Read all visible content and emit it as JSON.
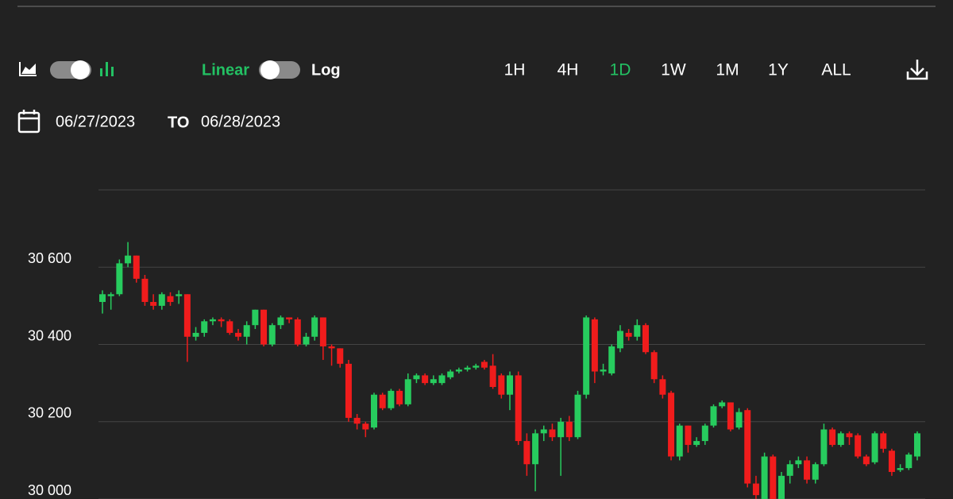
{
  "controls": {
    "scale_options": [
      "Linear",
      "Log"
    ],
    "active_scale": "Linear",
    "ranges": [
      "1H",
      "4H",
      "1D",
      "1W",
      "1M",
      "1Y",
      "ALL"
    ],
    "active_range": "1D",
    "date_from": "06/27/2023",
    "date_separator": "TO",
    "date_to": "06/28/2023",
    "active_color": "#23c163"
  },
  "chart_data": {
    "type": "candlestick",
    "up_color": "#27cc5e",
    "down_color": "#f01c1c",
    "grid": true,
    "ylim": [
      30000,
      30800
    ],
    "yticks": [
      {
        "value": 30000,
        "label": "30 000"
      },
      {
        "value": 30200,
        "label": "30 200"
      },
      {
        "value": 30400,
        "label": "30 400"
      },
      {
        "value": 30600,
        "label": "30 600"
      }
    ],
    "open": [
      30510,
      30525,
      30530,
      30610,
      30630,
      30570,
      30510,
      30500,
      30525,
      30525,
      30530,
      30420,
      30430,
      30460,
      30465,
      30460,
      30430,
      30420,
      30450,
      30490,
      30400,
      30450,
      30470,
      30465,
      30400,
      30420,
      30470,
      30395,
      30390,
      30350,
      30210,
      30195,
      30185,
      30270,
      30235,
      30280,
      30245,
      30310,
      30320,
      30300,
      30300,
      30315,
      30330,
      30335,
      30340,
      30355,
      30345,
      30320,
      30270,
      30320,
      30150,
      30090,
      30170,
      30180,
      30160,
      30200,
      30160,
      30270,
      30465,
      30330,
      30325,
      30390,
      30430,
      30420,
      30450,
      30380,
      30310,
      30275,
      30110,
      30190,
      30140,
      30150,
      30190,
      30240,
      30250,
      30185,
      30230,
      30040,
      30000,
      30110,
      30000,
      30060,
      30090,
      30100,
      30050,
      30090,
      30180,
      30140,
      30170,
      30165,
      30110,
      30095,
      30170,
      30125,
      30075,
      30080,
      30110
    ],
    "high": [
      30540,
      30535,
      30620,
      30665,
      30630,
      30580,
      30530,
      30535,
      30535,
      30540,
      30530,
      30445,
      30465,
      30470,
      30470,
      30465,
      30440,
      30460,
      30490,
      30490,
      30455,
      30475,
      30470,
      30470,
      30430,
      30475,
      30470,
      30400,
      30390,
      30360,
      30220,
      30200,
      30275,
      30275,
      30285,
      30285,
      30325,
      30325,
      30325,
      30320,
      30325,
      30335,
      30340,
      30345,
      30350,
      30360,
      30375,
      30325,
      30330,
      30330,
      30170,
      30180,
      30190,
      30195,
      30210,
      30215,
      30280,
      30475,
      30470,
      30350,
      30400,
      30450,
      30440,
      30465,
      30455,
      30385,
      30320,
      30280,
      30195,
      30190,
      30160,
      30195,
      30245,
      30255,
      30250,
      30235,
      30235,
      30060,
      30120,
      30115,
      30070,
      30100,
      30110,
      30110,
      30095,
      30195,
      30185,
      30175,
      30175,
      30170,
      30115,
      30175,
      30175,
      30130,
      30090,
      30120,
      30175
    ],
    "low": [
      30480,
      30490,
      30525,
      30600,
      30560,
      30500,
      30490,
      30490,
      30500,
      30505,
      30355,
      30410,
      30420,
      30450,
      30445,
      30425,
      30410,
      30400,
      30440,
      30395,
      30395,
      30440,
      30455,
      30395,
      30395,
      30410,
      30360,
      30345,
      30340,
      30200,
      30180,
      30160,
      30180,
      30230,
      30230,
      30240,
      30240,
      30300,
      30295,
      30295,
      30295,
      30310,
      30325,
      30330,
      30335,
      30335,
      30285,
      30260,
      30230,
      30140,
      30060,
      30020,
      30150,
      30150,
      30060,
      30150,
      30155,
      30260,
      30300,
      30320,
      30320,
      30380,
      30410,
      30410,
      30375,
      30300,
      30260,
      30100,
      30100,
      30120,
      30135,
      30140,
      30185,
      30235,
      30175,
      30180,
      30030,
      29990,
      29990,
      29990,
      29990,
      30040,
      30080,
      30040,
      30040,
      30085,
      30135,
      30135,
      30140,
      30105,
      30085,
      30090,
      30120,
      30060,
      30070,
      30075,
      30100
    ],
    "close": [
      30530,
      30530,
      30610,
      30630,
      30570,
      30510,
      30500,
      30530,
      30510,
      30530,
      30420,
      30430,
      30460,
      30465,
      30460,
      30430,
      30420,
      30450,
      30490,
      30400,
      30450,
      30470,
      30465,
      30400,
      30420,
      30470,
      30395,
      30390,
      30350,
      30210,
      30195,
      30180,
      30270,
      30235,
      30280,
      30245,
      30310,
      30320,
      30300,
      30310,
      30320,
      30330,
      30335,
      30340,
      30345,
      30340,
      30290,
      30270,
      30320,
      30150,
      30090,
      30170,
      30180,
      30160,
      30200,
      30160,
      30270,
      30470,
      30330,
      30335,
      30395,
      30435,
      30420,
      30450,
      30380,
      30310,
      30270,
      30110,
      30190,
      30140,
      30150,
      30190,
      30240,
      30250,
      30180,
      30225,
      30040,
      30010,
      30110,
      30000,
      30060,
      30090,
      30100,
      30050,
      30090,
      30180,
      30140,
      30170,
      30160,
      30110,
      30090,
      30170,
      30130,
      30070,
      30080,
      30115,
      30170
    ]
  }
}
